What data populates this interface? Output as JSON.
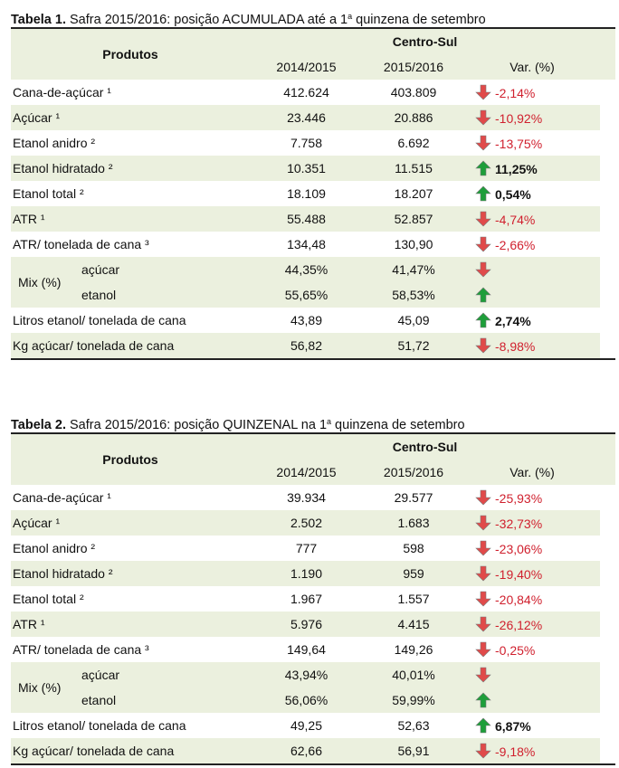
{
  "colors": {
    "shade": "#ebf0de",
    "negative": "#d0202e",
    "arrow_up": "#1e9e3a",
    "arrow_down": "#e04a4a"
  },
  "table1": {
    "caption_bold": "Tabela 1.",
    "caption_pre": " Safra 2015/2016: posição ACUMULADA até a 1",
    "caption_sup": "a",
    "caption_post": " quinzena de setembro",
    "header_products": "Produtos",
    "header_region": "Centro-Sul",
    "col_2014": "2014/2015",
    "col_2015": "2015/2016",
    "col_var": "Var. (%)",
    "rows": [
      {
        "label": "Cana-de-açúcar ¹",
        "v2014": "412.624",
        "v2015": "403.809",
        "dir": "down",
        "var": "-2,14%"
      },
      {
        "label": "Açúcar ¹",
        "v2014": "23.446",
        "v2015": "20.886",
        "dir": "down",
        "var": "-10,92%"
      },
      {
        "label": "Etanol anidro ²",
        "v2014": "7.758",
        "v2015": "6.692",
        "dir": "down",
        "var": "-13,75%"
      },
      {
        "label": "Etanol hidratado ²",
        "v2014": "10.351",
        "v2015": "11.515",
        "dir": "up",
        "var": "11,25%"
      },
      {
        "label": "Etanol total ²",
        "v2014": "18.109",
        "v2015": "18.207",
        "dir": "up",
        "var": "0,54%"
      },
      {
        "label": "ATR ¹",
        "v2014": "55.488",
        "v2015": "52.857",
        "dir": "down",
        "var": "-4,74%"
      },
      {
        "label": "ATR/ tonelada de cana ³",
        "v2014": "134,48",
        "v2015": "130,90",
        "dir": "down",
        "var": "-2,66%"
      }
    ],
    "mix": {
      "label": "Mix (%)",
      "acucar": {
        "label": "açúcar",
        "v2014": "44,35%",
        "v2015": "41,47%",
        "dir": "down"
      },
      "etanol": {
        "label": "etanol",
        "v2014": "55,65%",
        "v2015": "58,53%",
        "dir": "up"
      }
    },
    "tail_rows": [
      {
        "label": "Litros etanol/ tonelada de cana",
        "v2014": "43,89",
        "v2015": "45,09",
        "dir": "up",
        "var": "2,74%"
      },
      {
        "label": "Kg açúcar/ tonelada de cana",
        "v2014": "56,82",
        "v2015": "51,72",
        "dir": "down",
        "var": "-8,98%"
      }
    ]
  },
  "table2": {
    "caption_bold": "Tabela 2.",
    "caption_pre": " Safra 2015/2016: posição QUINZENAL na 1",
    "caption_sup": "a",
    "caption_post": " quinzena de setembro",
    "header_products": "Produtos",
    "header_region": "Centro-Sul",
    "col_2014": "2014/2015",
    "col_2015": "2015/2016",
    "col_var": "Var. (%)",
    "rows": [
      {
        "label": "Cana-de-açúcar ¹",
        "v2014": "39.934",
        "v2015": "29.577",
        "dir": "down",
        "var": "-25,93%"
      },
      {
        "label": "Açúcar ¹",
        "v2014": "2.502",
        "v2015": "1.683",
        "dir": "down",
        "var": "-32,73%"
      },
      {
        "label": "Etanol anidro ²",
        "v2014": "777",
        "v2015": "598",
        "dir": "down",
        "var": "-23,06%"
      },
      {
        "label": "Etanol hidratado ²",
        "v2014": "1.190",
        "v2015": "959",
        "dir": "down",
        "var": "-19,40%"
      },
      {
        "label": "Etanol total ²",
        "v2014": "1.967",
        "v2015": "1.557",
        "dir": "down",
        "var": "-20,84%"
      },
      {
        "label": "ATR ¹",
        "v2014": "5.976",
        "v2015": "4.415",
        "dir": "down",
        "var": "-26,12%"
      },
      {
        "label": "ATR/ tonelada de cana ³",
        "v2014": "149,64",
        "v2015": "149,26",
        "dir": "down",
        "var": "-0,25%"
      }
    ],
    "mix": {
      "label": "Mix (%)",
      "acucar": {
        "label": "açúcar",
        "v2014": "43,94%",
        "v2015": "40,01%",
        "dir": "down"
      },
      "etanol": {
        "label": "etanol",
        "v2014": "56,06%",
        "v2015": "59,99%",
        "dir": "up"
      }
    },
    "tail_rows": [
      {
        "label": "Litros etanol/ tonelada de cana",
        "v2014": "49,25",
        "v2015": "52,63",
        "dir": "up",
        "var": "6,87%"
      },
      {
        "label": "Kg açúcar/ tonelada de cana",
        "v2014": "62,66",
        "v2015": "56,91",
        "dir": "down",
        "var": "-9,18%"
      }
    ]
  }
}
